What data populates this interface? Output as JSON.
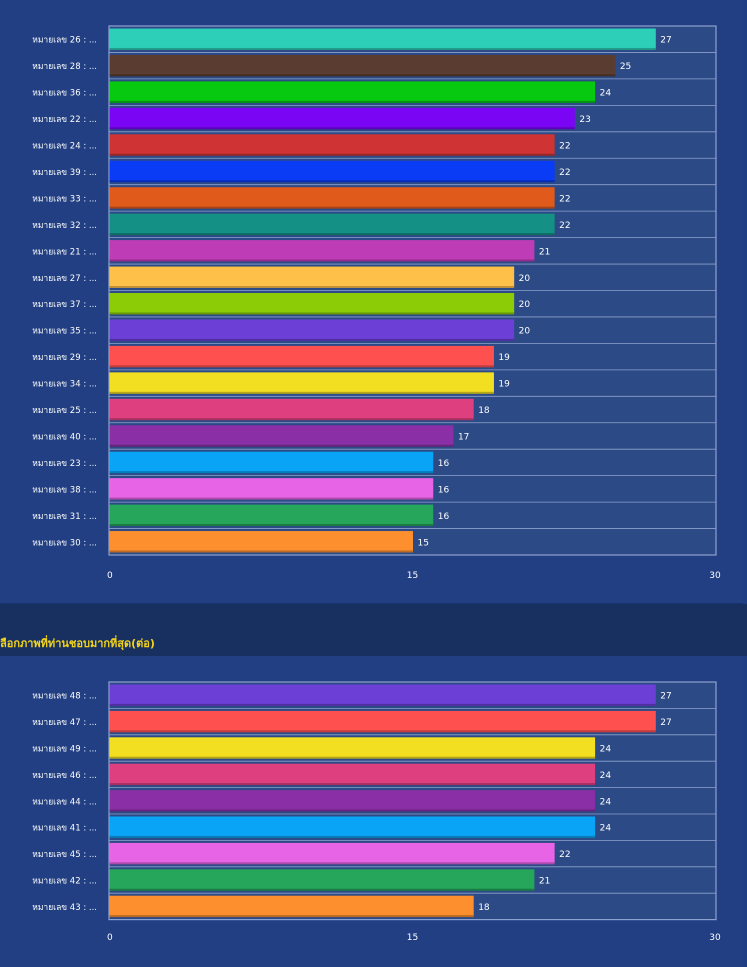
{
  "section_title": "ลือกภาพที่ท่านชอบมากที่สุด(ต่อ)",
  "colors": {
    "plot_bg": "#2c4a85",
    "grid": "#8ea2cf",
    "text": "#ffffff",
    "header_text": "#f2d31a"
  },
  "chart_data": [
    {
      "type": "bar",
      "orientation": "horizontal",
      "categories": [
        "หมายเลข 26 : ...",
        "หมายเลข 28 : ...",
        "หมายเลข 36 : ...",
        "หมายเลข 22 : ...",
        "หมายเลข 24 : ...",
        "หมายเลข 39 : ...",
        "หมายเลข 33 : ...",
        "หมายเลข 32 : ...",
        "หมายเลข 21 : ...",
        "หมายเลข 27 : ...",
        "หมายเลข 37 : ...",
        "หมายเลข 35 : ...",
        "หมายเลข 29 : ...",
        "หมายเลข 34 : ...",
        "หมายเลข 25 : ...",
        "หมายเลข 40 : ...",
        "หมายเลข 23 : ...",
        "หมายเลข 38 : ...",
        "หมายเลข 31 : ...",
        "หมายเลข 30 : ..."
      ],
      "values": [
        27,
        25,
        24,
        23,
        22,
        22,
        22,
        22,
        21,
        20,
        20,
        20,
        19,
        19,
        18,
        17,
        16,
        16,
        16,
        15
      ],
      "bar_colors": [
        "#2ecfb8",
        "#5a3d30",
        "#07c90f",
        "#7a05f5",
        "#cf3333",
        "#0a3cf5",
        "#e05a1c",
        "#149184",
        "#bf3cb7",
        "#ffc04a",
        "#8ccc07",
        "#6c3fd6",
        "#ff5050",
        "#f2df21",
        "#de3f7e",
        "#8b2fa6",
        "#0aa4f6",
        "#e764e7",
        "#25a65a",
        "#fd8f2e"
      ],
      "xlim": [
        0,
        30
      ],
      "xticks": [
        "0",
        "15",
        "30"
      ],
      "grid": true
    },
    {
      "type": "bar",
      "orientation": "horizontal",
      "categories": [
        "หมายเลข 48 : ...",
        "หมายเลข 47 : ...",
        "หมายเลข 49 : ...",
        "หมายเลข 46 : ...",
        "หมายเลข 44 : ...",
        "หมายเลข 41 : ...",
        "หมายเลข 45 : ...",
        "หมายเลข 42 : ...",
        "หมายเลข 43 : ..."
      ],
      "values": [
        27,
        27,
        24,
        24,
        24,
        24,
        22,
        21,
        18
      ],
      "bar_colors": [
        "#6c3fd6",
        "#ff5050",
        "#f2df21",
        "#de3f7e",
        "#8b2fa6",
        "#0aa4f6",
        "#e764e7",
        "#25a65a",
        "#fd8f2e"
      ],
      "xlim": [
        0,
        30
      ],
      "xticks": [
        "0",
        "15",
        "30"
      ],
      "grid": true
    }
  ]
}
